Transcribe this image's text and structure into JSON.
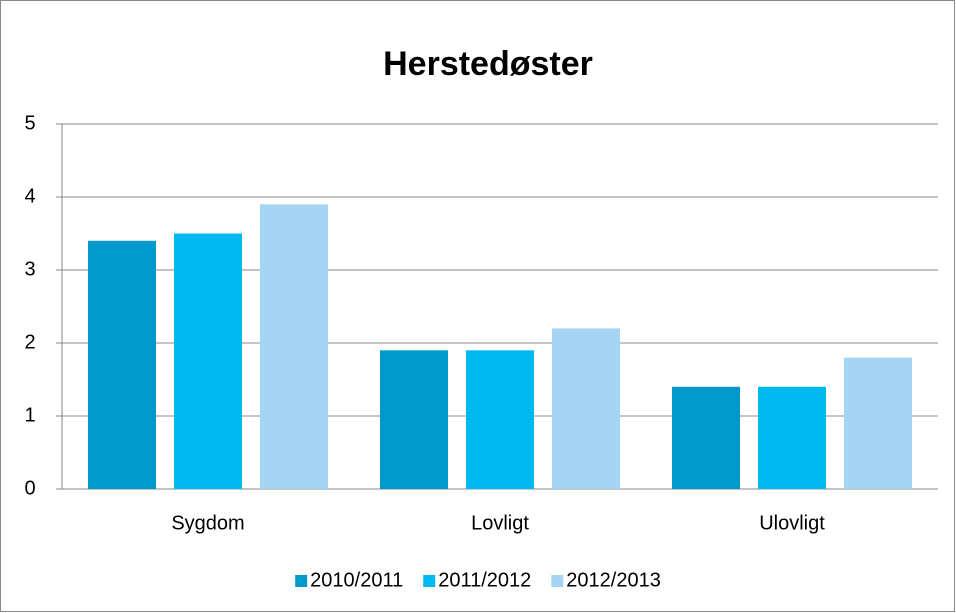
{
  "chart_data": {
    "type": "bar",
    "title": "Herstedøster",
    "categories": [
      "Sygdom",
      "Lovligt",
      "Ulovligt"
    ],
    "series": [
      {
        "name": "2010/2011",
        "color": "#0099cc",
        "values": [
          3.4,
          1.9,
          1.4
        ]
      },
      {
        "name": "2011/2012",
        "color": "#00b9f1",
        "values": [
          3.5,
          1.9,
          1.4
        ]
      },
      {
        "name": "2012/2013",
        "color": "#a6d5f4",
        "values": [
          3.9,
          2.2,
          1.8
        ]
      }
    ],
    "ylim": [
      0,
      5
    ],
    "yticks": [
      0,
      1,
      2,
      3,
      4,
      5
    ],
    "grid": true,
    "legend": "bottom"
  }
}
